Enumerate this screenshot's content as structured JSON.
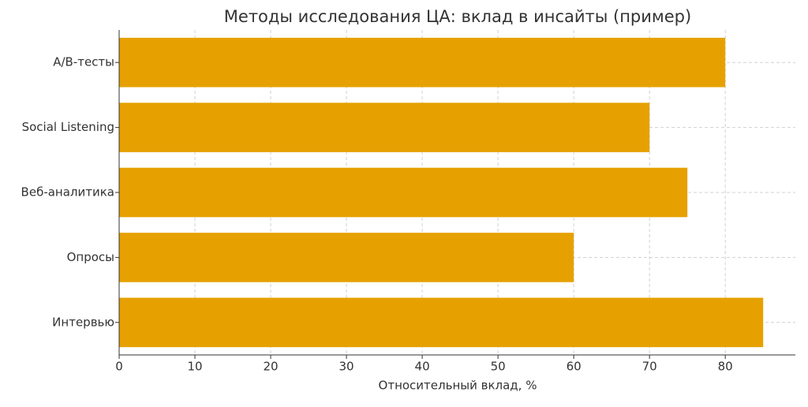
{
  "chart_data": {
    "type": "barh",
    "title": "Методы исследования ЦА: вклад в инсайты (пример)",
    "x_label": "Относительный вклад, %",
    "categories": [
      "A/B-тесты",
      "Social Listening",
      "Веб-аналитика",
      "Опросы",
      "Интервью"
    ],
    "values": [
      80,
      70,
      75,
      60,
      85
    ],
    "color": "#e6a100",
    "xlim": [
      0,
      89.25
    ],
    "xticks": [
      0,
      10,
      20,
      30,
      40,
      50,
      60,
      70,
      80
    ],
    "grid": true
  }
}
